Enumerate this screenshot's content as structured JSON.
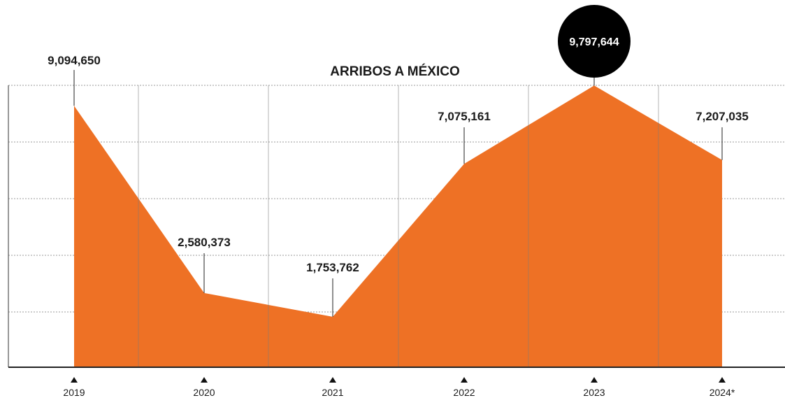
{
  "chart_data": {
    "type": "area",
    "title": "ARRIBOS A MÉXICO",
    "categories": [
      "2019",
      "2020",
      "2021",
      "2022",
      "2023",
      "2024*"
    ],
    "series": [
      {
        "values": [
          9094650,
          2580373,
          1753762,
          7075161,
          9797644,
          7207035
        ]
      }
    ],
    "value_labels": [
      "9,094,650",
      "2,580,373",
      "1,753,762",
      "7,075,161",
      "9,797,644",
      "7,207,035"
    ],
    "highlight_index": 4,
    "ylim": [
      0,
      10000000
    ],
    "grid": true,
    "colors": {
      "area": "#ee7125",
      "highlight_circle": "#000000",
      "grid": "#9a9a9a",
      "text": "#1a1a1a"
    }
  }
}
